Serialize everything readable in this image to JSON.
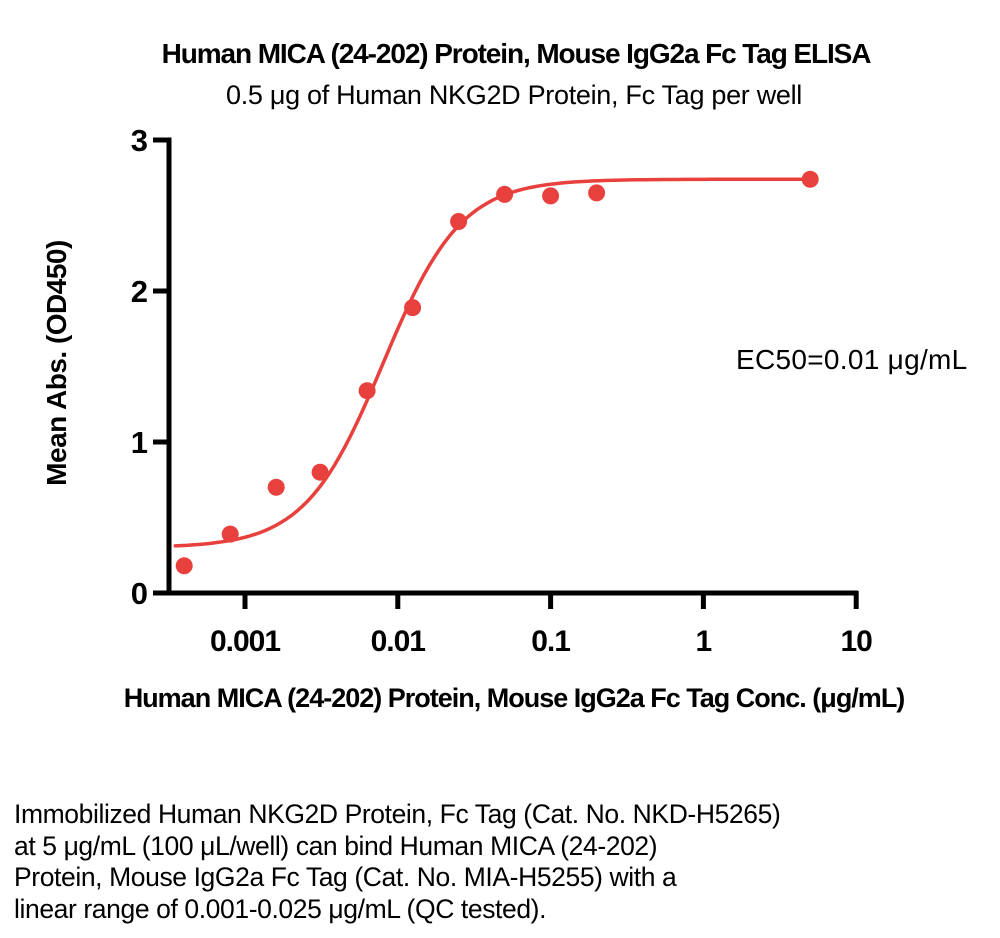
{
  "header": {
    "title": "Human MICA (24-202) Protein, Mouse IgG2a Fc Tag ELISA",
    "subtitle": "0.5 μg of Human NKG2D Protein, Fc Tag per well"
  },
  "chart": {
    "y_axis_label": "Mean Abs. (OD450)",
    "x_axis_label": "Human MICA (24-202) Protein, Mouse IgG2a Fc Tag Conc. (μg/mL)",
    "annotation": "EC50=0.01 μg/mL"
  },
  "chart_data": {
    "type": "scatter",
    "title": "Human MICA (24-202) Protein, Mouse IgG2a Fc Tag ELISA",
    "subtitle": "0.5 μg of Human NKG2D Protein, Fc Tag per well",
    "xlabel": "Human MICA (24-202) Protein, Mouse IgG2a Fc Tag Conc. (μg/mL)",
    "ylabel": "Mean Abs. (OD450)",
    "annotation": "EC50=0.01 μg/mL",
    "x_scale": "log",
    "xlim": [
      0.00032,
      12
    ],
    "ylim": [
      0,
      3
    ],
    "grid": false,
    "x_ticks": {
      "values": [
        0.001,
        0.01,
        0.1,
        1,
        10
      ],
      "labels": [
        "0.001",
        "0.01",
        "0.1",
        "1",
        "10"
      ]
    },
    "y_ticks": {
      "values": [
        0,
        1,
        2,
        3
      ],
      "labels": [
        "0",
        "1",
        "2",
        "3"
      ]
    },
    "points": [
      {
        "x": 0.0004,
        "y": 0.18
      },
      {
        "x": 0.0008,
        "y": 0.39
      },
      {
        "x": 0.0016,
        "y": 0.7
      },
      {
        "x": 0.0031,
        "y": 0.8
      },
      {
        "x": 0.0063,
        "y": 1.34
      },
      {
        "x": 0.0125,
        "y": 1.89
      },
      {
        "x": 0.025,
        "y": 2.46
      },
      {
        "x": 0.05,
        "y": 2.64
      },
      {
        "x": 0.1,
        "y": 2.63
      },
      {
        "x": 0.2,
        "y": 2.65
      },
      {
        "x": 5,
        "y": 2.74
      }
    ],
    "fit_curve": {
      "model": "4PL",
      "bottom": 0.3,
      "top": 2.74,
      "ec50": 0.008,
      "hill": 1.7,
      "x_start": 0.00035,
      "x_end": 5
    },
    "colors": {
      "series": "#e8403c",
      "axis": "#000000"
    }
  },
  "footer": {
    "lines": [
      "Immobilized Human NKG2D Protein, Fc Tag (Cat. No. NKD-H5265)",
      "at 5 μg/mL (100 μL/well) can bind Human MICA (24-202)",
      "Protein, Mouse IgG2a Fc Tag (Cat. No. MIA-H5255) with a",
      "linear range of 0.001-0.025 μg/mL (QC tested)."
    ]
  }
}
